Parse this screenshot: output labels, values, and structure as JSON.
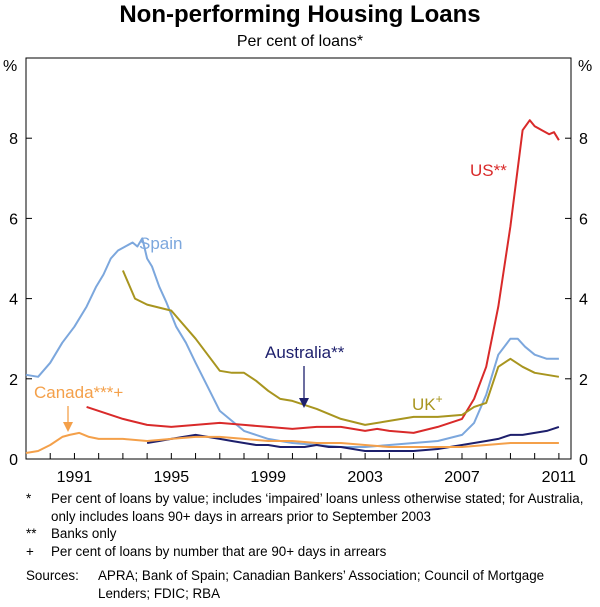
{
  "chart_data": {
    "type": "line",
    "title": "Non-performing Housing Loans",
    "subtitle": "Per cent of loans*",
    "ylabel_left": "%",
    "ylabel_right": "%",
    "xlim": [
      1989.0,
      2011.5
    ],
    "ylim": [
      0,
      10
    ],
    "yticks": [
      0,
      2,
      4,
      6,
      8
    ],
    "ytick_labels": [
      "0",
      "2",
      "4",
      "6",
      "8"
    ],
    "xticks": [
      1991,
      1995,
      1999,
      2003,
      2007,
      2011
    ],
    "xtick_labels": [
      "1991",
      "1995",
      "1999",
      "2003",
      "2007",
      "2011"
    ],
    "grid": false,
    "series": [
      {
        "name": "Spain",
        "label": "Spain",
        "color": "#7ca7dd",
        "x": [
          1989.0,
          1989.5,
          1990.0,
          1990.5,
          1991.0,
          1991.5,
          1991.9,
          1992.2,
          1992.5,
          1992.8,
          1993.1,
          1993.4,
          1993.6,
          1993.8,
          1994.0,
          1994.2,
          1994.5,
          1994.8,
          1995.2,
          1995.6,
          1996.0,
          1996.5,
          1997.0,
          1997.5,
          1998.0,
          1998.5,
          1999.0,
          1999.5,
          2000.0,
          2001.0,
          2002.0,
          2003.0,
          2004.0,
          2005.0,
          2006.0,
          2007.0,
          2007.5,
          2008.0,
          2008.5,
          2009.0,
          2009.3,
          2009.6,
          2010.0,
          2010.5,
          2011.0
        ],
        "y": [
          2.1,
          2.05,
          2.4,
          2.9,
          3.3,
          3.8,
          4.3,
          4.6,
          5.0,
          5.2,
          5.3,
          5.4,
          5.3,
          5.5,
          5.0,
          4.8,
          4.3,
          3.9,
          3.3,
          2.9,
          2.4,
          1.8,
          1.2,
          0.95,
          0.7,
          0.6,
          0.5,
          0.45,
          0.4,
          0.35,
          0.3,
          0.3,
          0.35,
          0.4,
          0.45,
          0.6,
          0.9,
          1.6,
          2.6,
          3.0,
          3.0,
          2.8,
          2.6,
          2.5,
          2.5
        ]
      },
      {
        "name": "US",
        "label": "US**",
        "color": "#d92a2a",
        "x": [
          1991.5,
          1992.0,
          1993.0,
          1994.0,
          1995.0,
          1996.0,
          1997.0,
          1998.0,
          1999.0,
          2000.0,
          2001.0,
          2002.0,
          2003.0,
          2003.5,
          2004.0,
          2005.0,
          2006.0,
          2007.0,
          2007.5,
          2008.0,
          2008.5,
          2009.0,
          2009.5,
          2009.8,
          2010.0,
          2010.3,
          2010.6,
          2010.8,
          2011.0
        ],
        "y": [
          1.3,
          1.2,
          1.0,
          0.85,
          0.8,
          0.85,
          0.9,
          0.85,
          0.8,
          0.75,
          0.8,
          0.8,
          0.7,
          0.75,
          0.7,
          0.65,
          0.8,
          1.0,
          1.5,
          2.3,
          3.8,
          5.8,
          8.2,
          8.45,
          8.3,
          8.2,
          8.1,
          8.15,
          7.95
        ]
      },
      {
        "name": "UK",
        "label": "UK+",
        "color": "#a8951f",
        "x": [
          1993.0,
          1993.5,
          1994.0,
          1995.0,
          1996.0,
          1997.0,
          1997.5,
          1998.0,
          1998.5,
          1999.0,
          1999.5,
          2000.0,
          2001.0,
          2002.0,
          2003.0,
          2004.0,
          2005.0,
          2006.0,
          2007.0,
          2007.5,
          2008.0,
          2008.5,
          2009.0,
          2009.5,
          2010.0,
          2010.5,
          2011.0
        ],
        "y": [
          4.7,
          4.0,
          3.85,
          3.7,
          3.0,
          2.2,
          2.15,
          2.15,
          1.95,
          1.7,
          1.5,
          1.45,
          1.25,
          1.0,
          0.85,
          0.95,
          1.05,
          1.05,
          1.1,
          1.3,
          1.4,
          2.3,
          2.5,
          2.3,
          2.15,
          2.1,
          2.05
        ]
      },
      {
        "name": "Australia",
        "label": "Australia**",
        "color": "#1d1f6c",
        "x": [
          1994.0,
          1994.5,
          1995.0,
          1995.5,
          1996.0,
          1996.5,
          1997.0,
          1997.5,
          1998.0,
          1998.5,
          1999.0,
          1999.5,
          2000.0,
          2000.5,
          2001.0,
          2001.5,
          2002.0,
          2002.5,
          2003.0,
          2003.5,
          2004.0,
          2005.0,
          2006.0,
          2007.0,
          2007.5,
          2008.0,
          2008.5,
          2009.0,
          2009.5,
          2010.0,
          2010.5,
          2011.0
        ],
        "y": [
          0.4,
          0.45,
          0.5,
          0.55,
          0.6,
          0.55,
          0.5,
          0.45,
          0.4,
          0.35,
          0.35,
          0.3,
          0.3,
          0.3,
          0.35,
          0.3,
          0.3,
          0.25,
          0.2,
          0.2,
          0.2,
          0.2,
          0.25,
          0.35,
          0.4,
          0.45,
          0.5,
          0.6,
          0.6,
          0.65,
          0.7,
          0.8
        ]
      },
      {
        "name": "Canada",
        "label": "Canada***+",
        "color": "#f4a04a",
        "x": [
          1989.0,
          1989.5,
          1990.0,
          1990.5,
          1990.8,
          1991.2,
          1991.6,
          1992.0,
          1993.0,
          1994.0,
          1995.0,
          1996.0,
          1997.0,
          1998.0,
          1999.0,
          2000.0,
          2001.0,
          2002.0,
          2003.0,
          2004.0,
          2005.0,
          2006.0,
          2007.0,
          2008.0,
          2009.0,
          2010.0,
          2011.0
        ],
        "y": [
          0.15,
          0.2,
          0.35,
          0.55,
          0.6,
          0.65,
          0.55,
          0.5,
          0.5,
          0.45,
          0.5,
          0.55,
          0.55,
          0.5,
          0.45,
          0.45,
          0.4,
          0.4,
          0.35,
          0.3,
          0.3,
          0.3,
          0.3,
          0.35,
          0.4,
          0.4,
          0.4
        ]
      }
    ],
    "annotations": {
      "spain": "Spain",
      "us": "US**",
      "australia": "Australia**",
      "canada": "Canada***+",
      "uk_base": "UK",
      "uk_sup": "+"
    }
  },
  "footnotes": [
    {
      "mark": "*",
      "text": "Per cent of loans by value; includes ‘impaired’ loans unless otherwise stated; for Australia, only includes loans 90+ days in arrears prior to September 2003"
    },
    {
      "mark": "**",
      "text": "Banks only"
    },
    {
      "mark": "+",
      "text": "Per cent of loans by number that are 90+ days in arrears"
    }
  ],
  "sources": {
    "label": "Sources:",
    "text": "APRA; Bank of Spain; Canadian Bankers’ Association; Council of Mortgage Lenders; FDIC; RBA"
  }
}
